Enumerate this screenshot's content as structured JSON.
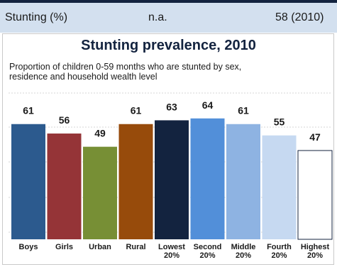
{
  "indicator": {
    "label": "Stunting (%)",
    "national": "n.a.",
    "value": "58 (2010)"
  },
  "chart_data": {
    "type": "bar",
    "title": "Stunting prevalence, 2010",
    "subtitle": "Proportion of children 0-59 months who are stunted by sex, residence and household wealth level",
    "categories": [
      "Boys",
      "Girls",
      "Urban",
      "Rural",
      "Lowest 20%",
      "Second 20%",
      "Middle 20%",
      "Fourth 20%",
      "Highest 20%"
    ],
    "category_lines": [
      [
        "Boys"
      ],
      [
        "Girls"
      ],
      [
        "Urban"
      ],
      [
        "Rural"
      ],
      [
        "Lowest",
        "20%"
      ],
      [
        "Second",
        "20%"
      ],
      [
        "Middle",
        "20%"
      ],
      [
        "Fourth",
        "20%"
      ],
      [
        "Highest",
        "20%"
      ]
    ],
    "values": [
      61,
      56,
      49,
      61,
      63,
      64,
      61,
      55,
      47
    ],
    "colors": [
      "#2c5a8e",
      "#953437",
      "#778f35",
      "#974b0b",
      "#13233f",
      "#528fd9",
      "#8eb3e2",
      "#c6d9f1",
      "#ffffff"
    ],
    "ylim": [
      0,
      100
    ],
    "grid": true,
    "legend": "none"
  }
}
